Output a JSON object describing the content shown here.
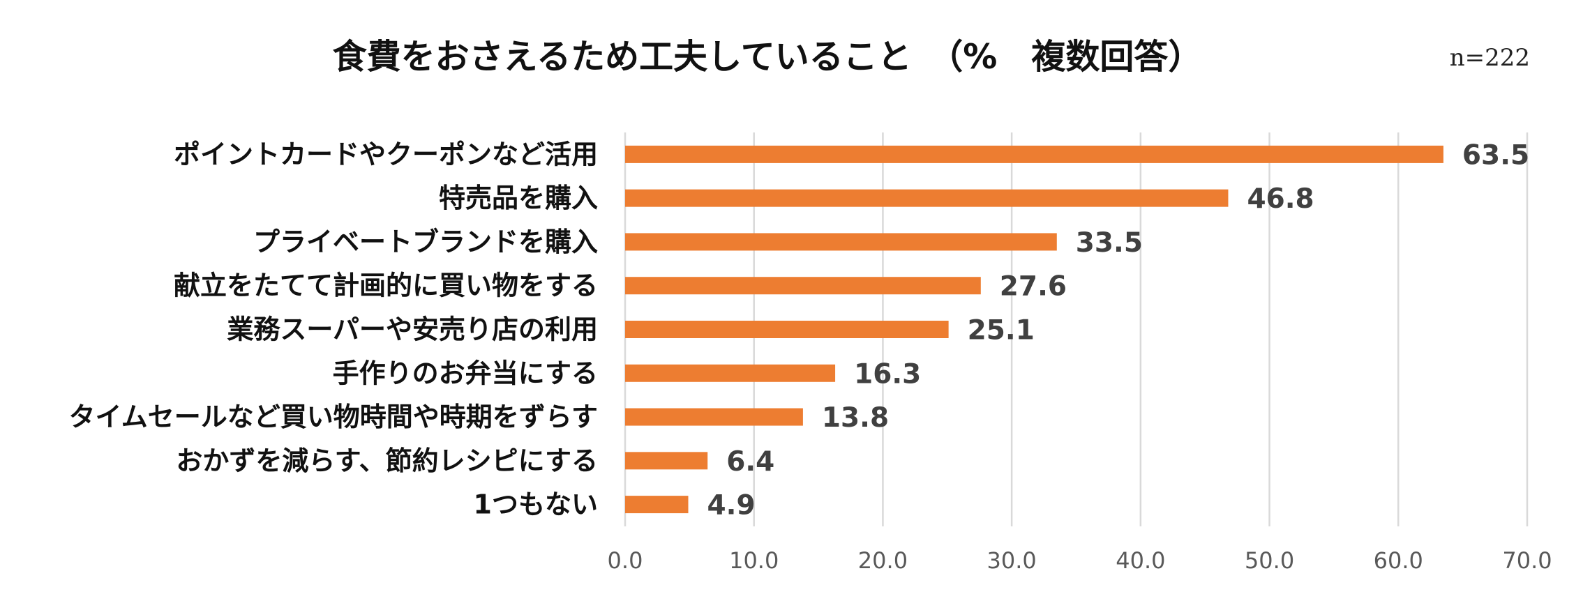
{
  "chart_data": {
    "type": "bar",
    "orientation": "horizontal",
    "title": "食費をおさえるため工夫していること　（%　複数回答）",
    "sample_size": "n=222",
    "categories": [
      "ポイントカードやクーポンなど活用",
      "特売品を購入",
      "プライベートブランドを購入",
      "献立をたてて計画的に買い物をする",
      "業務スーパーや安売り店の利用",
      "手作りのお弁当にする",
      "タイムセールなど買い物時間や時期をずらす",
      "おかずを減らす、節約レシピにする",
      "1つもない"
    ],
    "values": [
      63.5,
      46.8,
      33.5,
      27.6,
      25.1,
      16.3,
      13.8,
      6.4,
      4.9
    ],
    "value_labels": [
      "63.5",
      "46.8",
      "33.5",
      "27.6",
      "25.1",
      "16.3",
      "13.8",
      "6.4",
      "4.9"
    ],
    "xlim": [
      0,
      70
    ],
    "xticks": [
      0,
      10,
      20,
      30,
      40,
      50,
      60,
      70
    ],
    "xtick_labels": [
      "0.0",
      "10.0",
      "20.0",
      "30.0",
      "40.0",
      "50.0",
      "60.0",
      "70.0"
    ],
    "xlabel": "",
    "ylabel": "",
    "grid": true,
    "bar_color": "#ed7d31",
    "grid_color": "#d9d9d9"
  }
}
